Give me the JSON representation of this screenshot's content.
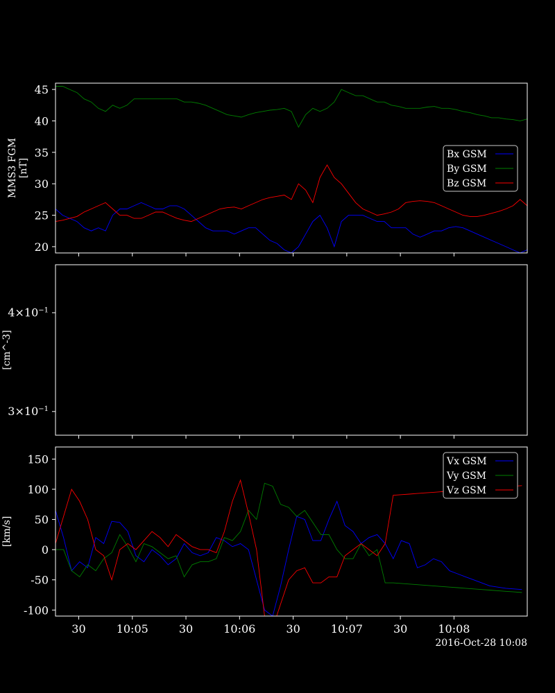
{
  "chart_data": [
    {
      "type": "line",
      "ylabel": [
        "MMS3 FGM",
        "[nT]"
      ],
      "ylim": [
        19,
        46
      ],
      "yticks": [
        20,
        25,
        30,
        35,
        40,
        45
      ],
      "legend_placement": "right",
      "x_seconds_range": [
        0,
        264
      ],
      "series": [
        {
          "name": "Bx GSM",
          "color": "#0000ff",
          "x": [
            0,
            4,
            8,
            12,
            16,
            20,
            24,
            28,
            32,
            36,
            40,
            44,
            48,
            52,
            56,
            60,
            64,
            68,
            72,
            76,
            80,
            84,
            88,
            92,
            96,
            100,
            104,
            108,
            112,
            116,
            120,
            124,
            128,
            132,
            136,
            140,
            144,
            148,
            152,
            156,
            160,
            164,
            168,
            172,
            176,
            180,
            184,
            188,
            192,
            196,
            200,
            204,
            208,
            212,
            216,
            220,
            224,
            228,
            232,
            236,
            240,
            244,
            248,
            252,
            256,
            260,
            264
          ],
          "values": [
            26,
            25,
            24.5,
            24,
            23,
            22.5,
            23,
            22.5,
            25,
            26,
            26,
            26.5,
            27,
            26.5,
            26,
            26,
            26.5,
            26.5,
            26,
            25,
            24,
            23,
            22.5,
            22.5,
            22.5,
            22,
            22.5,
            23,
            23,
            22,
            21,
            20.5,
            19.5,
            19,
            20,
            22,
            24,
            25,
            23,
            20,
            24,
            25,
            25,
            25,
            24.5,
            24,
            24,
            23,
            23,
            23,
            22,
            21.5,
            22,
            22.5,
            22.5,
            23,
            23.2,
            23,
            22.5,
            22,
            21.5,
            21,
            20.5,
            20,
            19.5,
            19,
            19.5
          ]
        },
        {
          "name": "By GSM",
          "color": "#008000",
          "x": [
            0,
            4,
            8,
            12,
            16,
            20,
            24,
            28,
            32,
            36,
            40,
            44,
            48,
            52,
            56,
            60,
            64,
            68,
            72,
            76,
            80,
            84,
            88,
            92,
            96,
            100,
            104,
            108,
            112,
            116,
            120,
            124,
            128,
            132,
            136,
            140,
            144,
            148,
            152,
            156,
            160,
            164,
            168,
            172,
            176,
            180,
            184,
            188,
            192,
            196,
            200,
            204,
            208,
            212,
            216,
            220,
            224,
            228,
            232,
            236,
            240,
            244,
            248,
            252,
            256,
            260,
            264
          ],
          "values": [
            45.5,
            45.5,
            45,
            44.5,
            43.5,
            43,
            42,
            41.5,
            42.5,
            42,
            42.5,
            43.5,
            43.5,
            43.5,
            43.5,
            43.5,
            43.5,
            43.5,
            43,
            43,
            42.8,
            42.5,
            42,
            41.5,
            41,
            40.8,
            40.6,
            41,
            41.3,
            41.5,
            41.7,
            41.8,
            42,
            41.5,
            39,
            41,
            42,
            41.5,
            42,
            43,
            45,
            44.5,
            44,
            44,
            43.5,
            43,
            43,
            42.5,
            42.3,
            42,
            42,
            42,
            42.2,
            42.3,
            42,
            42,
            41.8,
            41.5,
            41.3,
            41,
            40.8,
            40.5,
            40.5,
            40.3,
            40.2,
            40,
            40.3
          ]
        },
        {
          "name": "Bz GSM",
          "color": "#ff0000",
          "x": [
            0,
            4,
            8,
            12,
            16,
            20,
            24,
            28,
            32,
            36,
            40,
            44,
            48,
            52,
            56,
            60,
            64,
            68,
            72,
            76,
            80,
            84,
            88,
            92,
            96,
            100,
            104,
            108,
            112,
            116,
            120,
            124,
            128,
            132,
            136,
            140,
            144,
            148,
            152,
            156,
            160,
            164,
            168,
            172,
            176,
            180,
            184,
            188,
            192,
            196,
            200,
            204,
            208,
            212,
            216,
            220,
            224,
            228,
            232,
            236,
            240,
            244,
            248,
            252,
            256,
            260,
            264
          ],
          "values": [
            24,
            24.2,
            24.5,
            24.8,
            25.5,
            26,
            26.5,
            27,
            26,
            25,
            25,
            24.5,
            24.5,
            25,
            25.5,
            25.5,
            25,
            24.5,
            24.2,
            24,
            24.5,
            25,
            25.5,
            26,
            26.2,
            26.3,
            26,
            26.5,
            27,
            27.5,
            27.8,
            28,
            28.2,
            27.5,
            30,
            29,
            27,
            31,
            33,
            31,
            30,
            28.5,
            27,
            26,
            25.5,
            25,
            25.2,
            25.5,
            26,
            27,
            27.2,
            27.3,
            27.2,
            27,
            26.5,
            26,
            25.5,
            25,
            24.8,
            24.8,
            25,
            25.3,
            25.6,
            26,
            26.5,
            27.5,
            26.5
          ]
        }
      ]
    },
    {
      "type": "line",
      "ylabel": [
        "[cm^-3]"
      ],
      "yscale": "log",
      "ylim": [
        0.28,
        0.46
      ],
      "yticks": [
        0.3,
        0.4
      ],
      "ytick_labels": [
        {
          "mantissa": "3",
          "times": "×",
          "base": "10",
          "exponent": "−1"
        },
        {
          "mantissa": "4",
          "times": "×",
          "base": "10",
          "exponent": "−1"
        }
      ],
      "series": []
    },
    {
      "type": "line",
      "ylabel": [
        "[km/s]"
      ],
      "ylim": [
        -110,
        170
      ],
      "yticks": [
        -100,
        -50,
        0,
        50,
        100,
        150
      ],
      "legend_placement": "top-right",
      "series": [
        {
          "name": "Vx GSM",
          "color": "#0000ff",
          "x": [
            0,
            4.5,
            9,
            13.5,
            18,
            22.5,
            27,
            31.5,
            36,
            40.5,
            45,
            49.5,
            54,
            58.5,
            63,
            67.5,
            72,
            76.5,
            81,
            85.5,
            90,
            94.5,
            99,
            103.5,
            108,
            112.5,
            117,
            121.5,
            126,
            130.5,
            135,
            139.5,
            144,
            148.5,
            153,
            157.5,
            162,
            166.5,
            171,
            175.5,
            180,
            184.5,
            189,
            193.5,
            198,
            202.5,
            207,
            211.5,
            216,
            220.5,
            225,
            229.5,
            234,
            238.5,
            243,
            247.5,
            252,
            256.5,
            261
          ],
          "values": [
            65,
            20,
            -35,
            -20,
            -30,
            20,
            10,
            47,
            45,
            30,
            -10,
            -20,
            0,
            -10,
            -25,
            -15,
            10,
            -5,
            -10,
            -5,
            20,
            15,
            5,
            10,
            0,
            -50,
            -100,
            -110,
            -60,
            0,
            55,
            50,
            15,
            15,
            50,
            80,
            40,
            30,
            10,
            20,
            25,
            10,
            -15,
            15,
            10,
            -30,
            -25,
            -15,
            -20,
            -35,
            -40,
            -45,
            -50,
            -55,
            -60,
            -62,
            -64,
            -65,
            -66
          ]
        },
        {
          "name": "Vy GSM",
          "color": "#008000",
          "x": [
            0,
            4.5,
            9,
            13.5,
            18,
            22.5,
            27,
            31.5,
            36,
            40.5,
            45,
            49.5,
            54,
            58.5,
            63,
            67.5,
            72,
            76.5,
            81,
            85.5,
            90,
            94.5,
            99,
            103.5,
            108,
            112.5,
            117,
            121.5,
            126,
            130.5,
            135,
            139.5,
            144,
            148.5,
            153,
            157.5,
            162,
            166.5,
            171,
            175.5,
            180,
            184.5,
            189,
            193.5,
            198,
            202.5,
            207,
            211.5,
            216,
            220.5,
            225,
            229.5,
            234,
            238.5,
            243,
            247.5,
            252,
            256.5,
            261
          ],
          "values": [
            0,
            0,
            -35,
            -45,
            -25,
            -35,
            -15,
            -5,
            25,
            5,
            -20,
            10,
            5,
            -5,
            -15,
            -10,
            -45,
            -25,
            -20,
            -20,
            -15,
            20,
            15,
            30,
            65,
            50,
            110,
            105,
            75,
            70,
            55,
            65,
            45,
            25,
            25,
            0,
            -15,
            -15,
            10,
            -10,
            0,
            -55,
            -55,
            -56,
            -57,
            -58,
            -59,
            -60,
            -61,
            -62,
            -63,
            -64,
            -65,
            -66,
            -67,
            -68,
            -69,
            -70,
            -71
          ]
        },
        {
          "name": "Vz GSM",
          "color": "#ff0000",
          "x": [
            0,
            4.5,
            9,
            13.5,
            18,
            22.5,
            27,
            31.5,
            36,
            40.5,
            45,
            49.5,
            54,
            58.5,
            63,
            67.5,
            72,
            76.5,
            81,
            85.5,
            90,
            94.5,
            99,
            103.5,
            108,
            112.5,
            117,
            121.5,
            126,
            130.5,
            135,
            139.5,
            144,
            148.5,
            153,
            157.5,
            162,
            166.5,
            171,
            175.5,
            180,
            184.5,
            189,
            193.5,
            198,
            202.5,
            207,
            211.5,
            216,
            220.5,
            225,
            229.5,
            234,
            238.5,
            243,
            247.5,
            252,
            256.5,
            261
          ],
          "values": [
            10,
            55,
            100,
            80,
            50,
            0,
            -10,
            -50,
            0,
            10,
            0,
            15,
            30,
            20,
            5,
            25,
            15,
            5,
            0,
            0,
            -5,
            30,
            80,
            115,
            60,
            0,
            -110,
            -130,
            -90,
            -50,
            -35,
            -30,
            -55,
            -55,
            -45,
            -45,
            -10,
            0,
            10,
            0,
            -10,
            10,
            90,
            91,
            92,
            93,
            94,
            95,
            96,
            97,
            98,
            99,
            100,
            101,
            102,
            103,
            104,
            105,
            106
          ]
        }
      ]
    }
  ],
  "xaxis": {
    "x_seconds_range": [
      0,
      264
    ],
    "ticks": [
      {
        "x": 13,
        "label": "30"
      },
      {
        "x": 43,
        "label": "10:05"
      },
      {
        "x": 73,
        "label": "30"
      },
      {
        "x": 103,
        "label": "10:06"
      },
      {
        "x": 133,
        "label": "30"
      },
      {
        "x": 163,
        "label": "10:07"
      },
      {
        "x": 193,
        "label": "30"
      },
      {
        "x": 223,
        "label": "10:08"
      }
    ],
    "minor_ticks": [
      28,
      58,
      88,
      118,
      148,
      178,
      208,
      238
    ],
    "date_label": "2016-Oct-28 10:08"
  },
  "colors": {
    "background": "#000000",
    "foreground": "#ffffff"
  }
}
